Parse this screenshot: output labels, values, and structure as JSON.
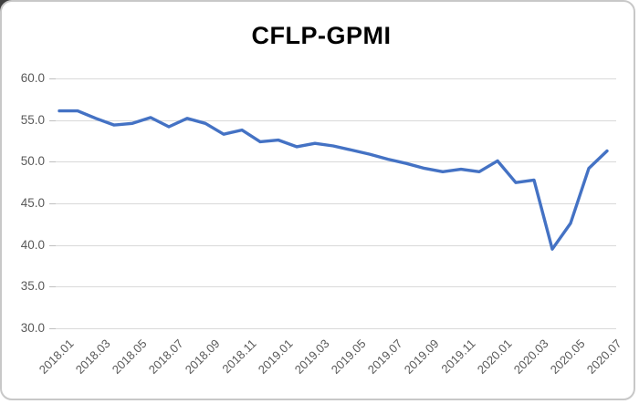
{
  "window": {
    "background_color": "#ffffff",
    "border_color": "#c8c8c8"
  },
  "chart_data": {
    "type": "line",
    "title": "CFLP-GPMI",
    "xlabel": "",
    "ylabel": "",
    "ylim": [
      30,
      60
    ],
    "y_tick_labels": [
      "60.0",
      "55.0",
      "50.0",
      "45.0",
      "40.0",
      "35.0",
      "30.0"
    ],
    "grid": "horizontal",
    "legend": "none",
    "line_color": "#4472C4",
    "gridline_color": "#d9d9d9",
    "tick_color": "#bfbfbf",
    "axis_label_color": "#595959",
    "categories": [
      "2018.01",
      "2018.02",
      "2018.03",
      "2018.04",
      "2018.05",
      "2018.06",
      "2018.07",
      "2018.08",
      "2018.09",
      "2018.10",
      "2018.11",
      "2018.12",
      "2019.01",
      "2019.02",
      "2019.03",
      "2019.04",
      "2019.05",
      "2019.06",
      "2019.07",
      "2019.08",
      "2019.09",
      "2019.10",
      "2019.11",
      "2019.12",
      "2020.01",
      "2020.02",
      "2020.03",
      "2020.04",
      "2020.05",
      "2020.06",
      "2020.07"
    ],
    "values": [
      56.1,
      56.1,
      55.2,
      54.4,
      54.6,
      55.3,
      54.2,
      55.2,
      54.6,
      53.3,
      53.8,
      52.4,
      52.6,
      51.8,
      52.2,
      51.9,
      51.4,
      50.9,
      50.3,
      49.8,
      49.2,
      48.8,
      49.1,
      48.8,
      50.1,
      47.5,
      47.8,
      39.5,
      42.6,
      49.2,
      51.3
    ],
    "x_tick_labels": [
      "2018.01",
      "2018.03",
      "2018.05",
      "2018.07",
      "2018.09",
      "2018.11",
      "2019.01",
      "2019.03",
      "2019.05",
      "2019.07",
      "2019.09",
      "2019.11",
      "2020.01",
      "2020.03",
      "2020.05",
      "2020.07"
    ]
  }
}
